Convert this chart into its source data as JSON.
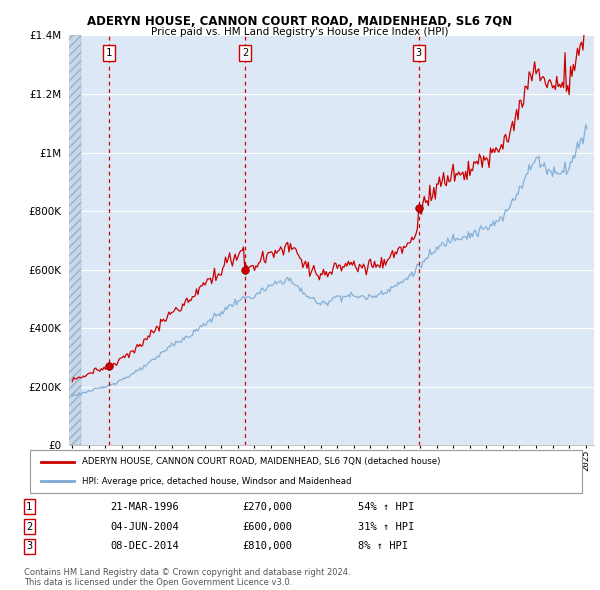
{
  "title": "ADERYN HOUSE, CANNON COURT ROAD, MAIDENHEAD, SL6 7QN",
  "subtitle": "Price paid vs. HM Land Registry's House Price Index (HPI)",
  "legend_line1": "ADERYN HOUSE, CANNON COURT ROAD, MAIDENHEAD, SL6 7QN (detached house)",
  "legend_line2": "HPI: Average price, detached house, Windsor and Maidenhead",
  "transactions": [
    {
      "num": 1,
      "date": "21-MAR-1996",
      "price": 270000,
      "pct": "54%",
      "dir": "↑"
    },
    {
      "num": 2,
      "date": "04-JUN-2004",
      "price": 600000,
      "pct": "31%",
      "dir": "↑"
    },
    {
      "num": 3,
      "date": "08-DEC-2014",
      "price": 810000,
      "pct": "8%",
      "dir": "↑"
    }
  ],
  "footnote1": "Contains HM Land Registry data © Crown copyright and database right 2024.",
  "footnote2": "This data is licensed under the Open Government Licence v3.0.",
  "sale_color": "#cc0000",
  "hpi_color": "#7baad4",
  "dashed_color": "#cc0000",
  "ylim": [
    0,
    1400000
  ],
  "yticks": [
    0,
    200000,
    400000,
    600000,
    800000,
    1000000,
    1200000,
    1400000
  ],
  "background_color": "#ffffff",
  "plot_bg_color": "#dce8f5",
  "hatch_bg_color": "#c8d8e8",
  "sale_points": [
    {
      "year": 1996.22,
      "price": 270000
    },
    {
      "year": 2004.42,
      "price": 600000
    },
    {
      "year": 2014.92,
      "price": 810000
    }
  ],
  "sale_vlines": [
    1996.22,
    2004.42,
    2014.92
  ],
  "xmin": 1993.8,
  "xmax": 2025.5
}
